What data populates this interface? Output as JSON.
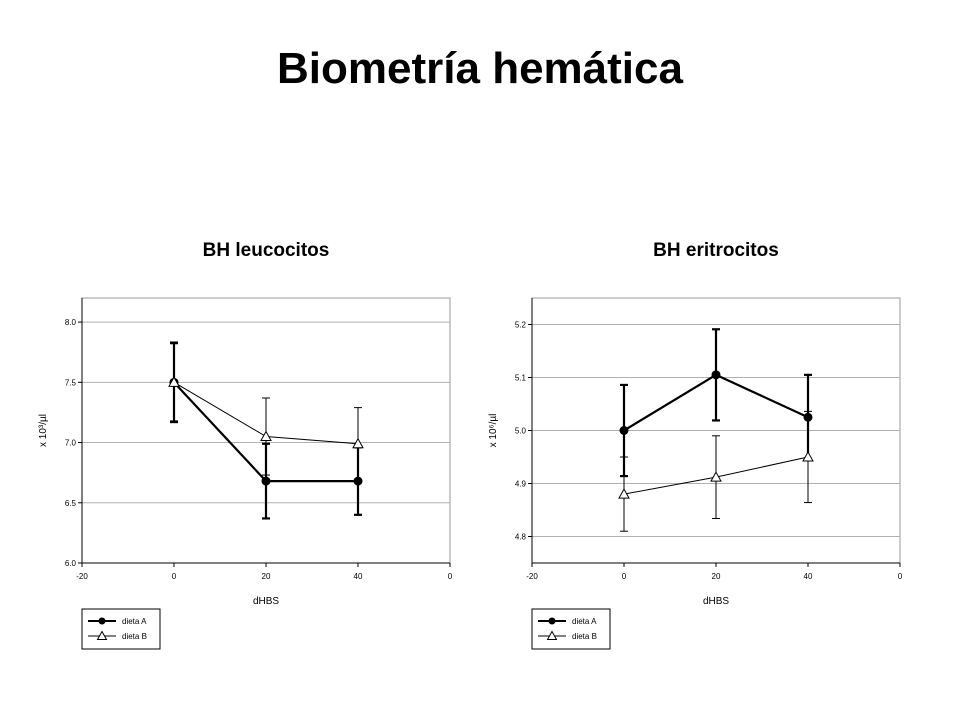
{
  "page": {
    "title": "Biometría hemática"
  },
  "chart_data": [
    {
      "type": "line",
      "title": "BH leucocitos",
      "xlabel": "dHBS",
      "ylabel": "x 10³/µl",
      "xlim": [
        -20,
        40
      ],
      "x_tick_labels": [
        "-20",
        "0",
        "20",
        "40",
        "0"
      ],
      "ylim": [
        6.0,
        8.2
      ],
      "y_ticks": [
        6.0,
        6.5,
        7.0,
        7.5,
        8.0
      ],
      "y_tick_labels": [
        "6.0",
        "6.5",
        "7.0",
        "7.5",
        "8.0"
      ],
      "grid": "horizontal",
      "legend_position": "below-left",
      "x": [
        0,
        20,
        40
      ],
      "series": [
        {
          "name": "dieta A",
          "marker": "filled-circle",
          "values": [
            7.5,
            6.68,
            6.68
          ],
          "err": [
            0.33,
            0.31,
            0.28
          ]
        },
        {
          "name": "dieta B",
          "marker": "open-triangle",
          "values": [
            7.5,
            7.05,
            6.99
          ],
          "err": [
            0.32,
            0.32,
            0.3
          ]
        }
      ]
    },
    {
      "type": "line",
      "title": "BH eritrocitos",
      "xlabel": "dHBS",
      "ylabel": "x 10⁶/µl",
      "xlim": [
        -20,
        40
      ],
      "x_tick_labels": [
        "-20",
        "0",
        "20",
        "40",
        "0"
      ],
      "ylim": [
        4.75,
        5.25
      ],
      "y_ticks": [
        4.8,
        4.9,
        5.0,
        5.1,
        5.2
      ],
      "y_tick_labels": [
        "4.8",
        "4.9",
        "5.0",
        "5.1",
        "5.2"
      ],
      "grid": "horizontal",
      "legend_position": "below-left",
      "x": [
        0,
        20,
        40
      ],
      "series": [
        {
          "name": "dieta A",
          "marker": "filled-circle",
          "values": [
            5.0,
            5.105,
            5.025
          ],
          "err": [
            0.086,
            0.086,
            0.08
          ]
        },
        {
          "name": "dieta B",
          "marker": "open-triangle",
          "values": [
            4.88,
            4.912,
            4.95
          ],
          "err": [
            0.07,
            0.078,
            0.086
          ]
        }
      ]
    }
  ]
}
